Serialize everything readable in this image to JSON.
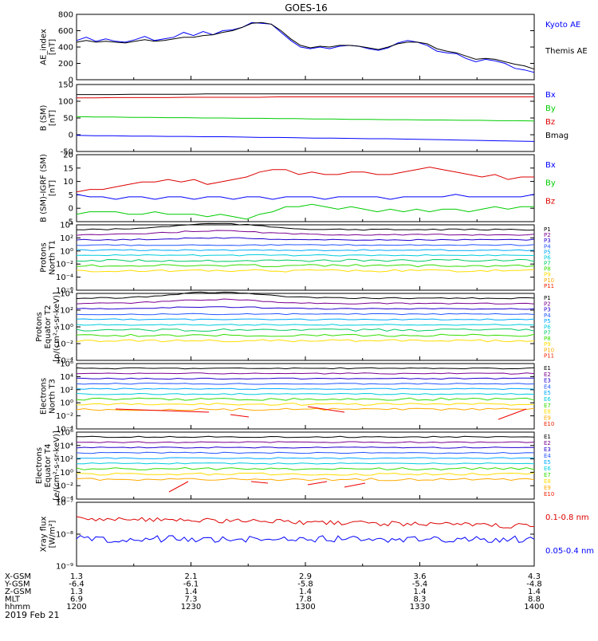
{
  "chart_data": {
    "type": "line",
    "title": "GOES-16",
    "date_label": "2019 Feb 21",
    "x_axis": {
      "row_labels": [
        "X-GSM",
        "Y-GSM",
        "Z-GSM",
        "MLT",
        "hhmm"
      ],
      "ticks": [
        {
          "values": [
            "1.3",
            "-6.4",
            "1.3",
            "6.9",
            "1200"
          ]
        },
        {
          "values": [
            "2.1",
            "-6.1",
            "1.4",
            "7.3",
            "1230"
          ]
        },
        {
          "values": [
            "2.9",
            "-5.8",
            "1.4",
            "7.8",
            "1300"
          ]
        },
        {
          "values": [
            "3.6",
            "-5.4",
            "1.4",
            "8.3",
            "1330"
          ]
        },
        {
          "values": [
            "4.3",
            "-4.8",
            "1.4",
            "8.8",
            "1400"
          ]
        }
      ]
    },
    "panels": [
      {
        "id": "ae",
        "ylabel": [
          "AE_index",
          "[nT]"
        ],
        "ylim": [
          0,
          800
        ],
        "yticks": [
          "0",
          "200",
          "400",
          "600",
          "800"
        ],
        "series": [
          {
            "name": "Kyoto AE",
            "color": "#0000ff",
            "values": [
              480,
              520,
              470,
              500,
              470,
              460,
              490,
              530,
              480,
              500,
              520,
              580,
              540,
              590,
              550,
              600,
              610,
              640,
              700,
              690,
              680,
              580,
              480,
              400,
              380,
              400,
              380,
              410,
              420,
              410,
              380,
              360,
              390,
              450,
              480,
              460,
              420,
              350,
              330,
              320,
              260,
              220,
              250,
              230,
              200,
              140,
              120,
              90
            ]
          },
          {
            "name": "Themis AE",
            "color": "#000000",
            "values": [
              460,
              480,
              460,
              470,
              460,
              450,
              470,
              490,
              470,
              480,
              500,
              520,
              520,
              540,
              550,
              580,
              600,
              640,
              690,
              700,
              680,
              600,
              500,
              420,
              390,
              410,
              400,
              420,
              420,
              410,
              390,
              370,
              400,
              440,
              460,
              460,
              440,
              380,
              350,
              330,
              290,
              250,
              260,
              250,
              220,
              190,
              170,
              130
            ]
          }
        ]
      },
      {
        "id": "b_sm",
        "ylabel": [
          "B (SM)",
          "[nT]"
        ],
        "ylim": [
          -60,
          140
        ],
        "yticks": [
          "-50",
          "0",
          "50",
          "100",
          "150"
        ],
        "series": [
          {
            "name": "Bx",
            "color": "#0000ff",
            "values": [
              -12,
              -13,
              -13,
              -14,
              -14,
              -15,
              -15,
              -16,
              -16,
              -17,
              -18,
              -18,
              -19,
              -20,
              -20,
              -21,
              -22,
              -22,
              -23,
              -24,
              -25,
              -26,
              -27,
              -28,
              -29,
              -30
            ]
          },
          {
            "name": "By",
            "color": "#00cc00",
            "values": [
              44,
              43,
              43,
              42,
              42,
              41,
              41,
              40,
              40,
              39,
              39,
              38,
              38,
              37,
              37,
              36,
              36,
              35,
              35,
              34,
              34,
              33,
              33,
              32,
              32,
              31
            ]
          },
          {
            "name": "Bz",
            "color": "#dd0000",
            "values": [
              100,
              100,
              101,
              101,
              101,
              101,
              102,
              102,
              102,
              102,
              102,
              103,
              103,
              103,
              103,
              103,
              103,
              103,
              103,
              103,
              103,
              103,
              103,
              103,
              103,
              103
            ]
          },
          {
            "name": "Bmag",
            "color": "#000000",
            "values": [
              110,
              110,
              110,
              111,
              111,
              111,
              111,
              112,
              112,
              112,
              112,
              112,
              112,
              112,
              112,
              112,
              112,
              112,
              112,
              112,
              112,
              112,
              112,
              112,
              112,
              112
            ]
          }
        ]
      },
      {
        "id": "b_igrf",
        "ylabel": [
          "B (SM)-IGRF (SM)",
          "[nT]"
        ],
        "ylim": [
          -6,
          21
        ],
        "yticks": [
          "-5",
          "0",
          "5",
          "10",
          "15",
          "20"
        ],
        "series": [
          {
            "name": "Bx",
            "color": "#0000ff",
            "values": [
              5,
              4,
              4,
              3,
              4,
              4,
              3,
              4,
              4,
              3,
              4,
              4,
              3,
              4,
              4,
              3,
              4,
              4,
              4,
              3,
              4,
              4,
              4,
              4,
              3,
              4,
              4,
              4,
              4,
              5,
              4,
              4,
              4,
              4,
              4,
              5
            ]
          },
          {
            "name": "By",
            "color": "#00cc00",
            "values": [
              -3,
              -2,
              -2,
              -2,
              -3,
              -3,
              -2,
              -3,
              -3,
              -3,
              -4,
              -3,
              -4,
              -5,
              -3,
              -2,
              0,
              0,
              1,
              0,
              -1,
              0,
              -1,
              -2,
              -1,
              -2,
              -1,
              -2,
              -1,
              -1,
              -2,
              -1,
              0,
              -1,
              0,
              0
            ]
          },
          {
            "name": "Bz",
            "color": "#dd0000",
            "values": [
              6,
              7,
              7,
              8,
              9,
              10,
              10,
              11,
              10,
              11,
              9,
              10,
              11,
              12,
              14,
              15,
              15,
              13,
              14,
              13,
              13,
              14,
              14,
              13,
              13,
              14,
              15,
              16,
              15,
              14,
              13,
              12,
              13,
              11,
              12,
              12
            ]
          }
        ]
      },
      {
        "id": "protons_t1",
        "ylabel": [
          "Protons",
          "North T1"
        ],
        "ylim_log": [
          -6,
          4
        ],
        "yticks": [
          "10⁻⁶",
          "10⁻⁴",
          "10⁻²",
          "10⁰",
          "10²",
          "10⁴"
        ],
        "series_labels": [
          "P1",
          "P2",
          "P3",
          "P4",
          "P5",
          "P6",
          "P7",
          "P8",
          "P9",
          "P10",
          "P11"
        ]
      },
      {
        "id": "protons_t2",
        "ylabel": [
          "Protons",
          "Equator T2",
          "[p/(cm²-s-sr-keV)]"
        ],
        "ylim_log": [
          -5,
          4
        ],
        "yticks": [
          "10⁻⁴",
          "10⁻²",
          "10⁰",
          "10²",
          "10⁴"
        ],
        "series_labels": [
          "P1",
          "P2",
          "P3",
          "P4",
          "P5",
          "P6",
          "P7",
          "P8",
          "P9",
          "P10",
          "P11"
        ]
      },
      {
        "id": "electrons_t3",
        "ylabel": [
          "Electrons",
          "North T3"
        ],
        "ylim_log": [
          -4,
          6
        ],
        "yticks": [
          "10⁻⁴",
          "10⁻²",
          "10⁰",
          "10²",
          "10⁴",
          "10⁶"
        ],
        "series_labels": [
          "E1",
          "E2",
          "E3",
          "E4",
          "E5",
          "E6",
          "E7",
          "E8",
          "E9",
          "E10"
        ]
      },
      {
        "id": "electrons_t4",
        "ylabel": [
          "Electrons",
          "Equator T4",
          "[e/(cm²-s-sr-keV)]"
        ],
        "ylim_log": [
          -4,
          6
        ],
        "yticks": [
          "10⁻⁴",
          "10⁻²",
          "10⁰",
          "10²",
          "10⁴",
          "10⁶"
        ],
        "series_labels": [
          "E1",
          "E2",
          "E3",
          "E4",
          "E5",
          "E6",
          "E7",
          "E8",
          "E9",
          "E10"
        ]
      },
      {
        "id": "xray",
        "ylabel": [
          "Xray flux",
          "[W/m²]"
        ],
        "ylim_log": [
          -9,
          -7
        ],
        "yticks": [
          "10⁻⁹",
          "10⁻⁸",
          "10⁻⁷"
        ],
        "series": [
          {
            "name": "0.1-0.8 nm",
            "color": "#dd0000"
          },
          {
            "name": "0.05-0.4 nm",
            "color": "#0000ff"
          }
        ]
      }
    ]
  },
  "colors": {
    "protons": [
      "#000000",
      "#7a0090",
      "#2200d0",
      "#2255ff",
      "#00aaff",
      "#00ccdd",
      "#00cc66",
      "#33dd00",
      "#ffdd00",
      "#ffaa00",
      "#ee2200"
    ],
    "electrons": [
      "#000000",
      "#7a0090",
      "#2200d0",
      "#2255ff",
      "#00aaff",
      "#00ccdd",
      "#33dd00",
      "#ffdd00",
      "#ffaa00",
      "#ee2200"
    ],
    "electron_labels": [
      "#000000",
      "#7a0090",
      "#2200d0",
      "#2255ff",
      "#00aaff",
      "#00ccdd",
      "#33dd00",
      "#ffdd00",
      "#ffaa00",
      "#ee2200",
      "#cc0000"
    ]
  }
}
